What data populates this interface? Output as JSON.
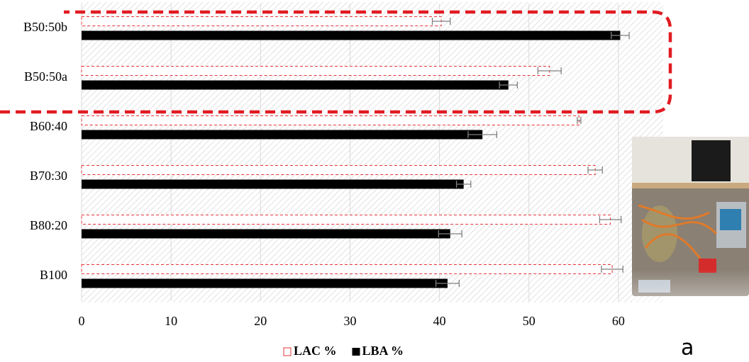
{
  "chart_data": {
    "type": "bar",
    "orientation": "horizontal",
    "categories": [
      "B100",
      "B80:20",
      "B70:30",
      "B60:40",
      "B50:50a",
      "B50:50b"
    ],
    "series": [
      {
        "name": "LAC %",
        "color": "#e8343a",
        "values": [
          59.3,
          59.1,
          57.4,
          55.6,
          52.3,
          40.2
        ],
        "errors": [
          1.2,
          1.2,
          0.8,
          0.2,
          1.3,
          1.0
        ]
      },
      {
        "name": "LBA %",
        "color": "#000000",
        "values": [
          40.9,
          41.2,
          42.7,
          44.8,
          47.7,
          60.2
        ],
        "errors": [
          1.3,
          1.3,
          0.8,
          1.6,
          1.0,
          1.0
        ]
      }
    ],
    "xlim": [
      0,
      65
    ],
    "xticks": [
      0,
      10,
      20,
      30,
      40,
      50,
      60
    ],
    "grid": true,
    "legend": "bottom",
    "annotation": "a"
  }
}
